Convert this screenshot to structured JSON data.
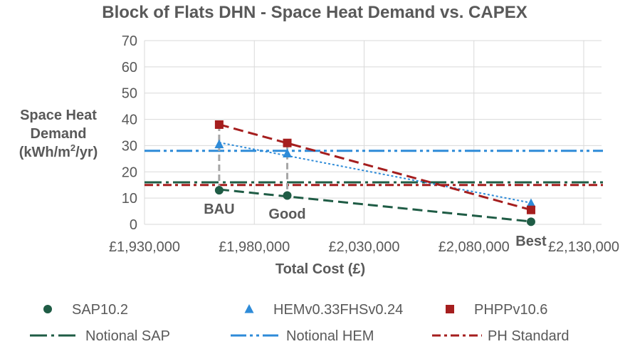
{
  "chart_data": {
    "type": "scatter",
    "title": "Block of Flats DHN - Space Heat Demand vs. CAPEX",
    "xlabel": "Total Cost (£)",
    "ylabel": [
      "Space Heat",
      "Demand",
      "(kWh/m",
      "2",
      "/yr)"
    ],
    "xlim": [
      1930000,
      2130000
    ],
    "ylim": [
      0,
      70
    ],
    "xticks": [
      1930000,
      1980000,
      2030000,
      2080000,
      2130000
    ],
    "xtick_labels": [
      "£1,930,000",
      "£1,980,000",
      "£2,030,000",
      "£2,080,000",
      "£2,130,000"
    ],
    "yticks": [
      0,
      10,
      20,
      30,
      40,
      50,
      60,
      70
    ],
    "ytick_labels": [
      "0",
      "10",
      "20",
      "30",
      "40",
      "50",
      "60",
      "70"
    ],
    "grid": true,
    "legend_position": "bottom",
    "series": [
      {
        "name": "SAP10.2",
        "marker": "circle",
        "color": "#1f5c45",
        "x": [
          1964000,
          1995000,
          2106000
        ],
        "y": [
          13,
          11,
          1
        ],
        "trend": "dash"
      },
      {
        "name": "HEMv0.33FHSv0.24",
        "marker": "triangle",
        "color": "#2e8bd8",
        "x": [
          1964000,
          1995000,
          2106000
        ],
        "y": [
          30.5,
          27,
          8
        ],
        "trend": "dot"
      },
      {
        "name": "PHPPv10.6",
        "marker": "square",
        "color": "#a51e1e",
        "x": [
          1964000,
          1995000,
          2106000
        ],
        "y": [
          38,
          31,
          5.5
        ],
        "trend": "dash"
      }
    ],
    "reference_lines": [
      {
        "name": "Notional SAP",
        "y": 16,
        "color": "#1f5c45",
        "style": "long-dash-dot"
      },
      {
        "name": "Notional HEM",
        "y": 28,
        "color": "#2e8bd8",
        "style": "long-dash-dot-dot"
      },
      {
        "name": "PH Standard",
        "y": 15,
        "color": "#a51e1e",
        "style": "dash-dot"
      }
    ],
    "drop_lines": [
      {
        "x": 1964000,
        "y_top": 38,
        "y_bottom": 13,
        "color": "#a6a6a6"
      },
      {
        "x": 1995000,
        "y_top": 31,
        "y_bottom": 11,
        "color": "#a6a6a6"
      }
    ],
    "annotations": [
      {
        "text": "BAU",
        "x": 1964000
      },
      {
        "text": "Good",
        "x": 1995000
      },
      {
        "text": "Best",
        "x": 2106000
      }
    ]
  }
}
